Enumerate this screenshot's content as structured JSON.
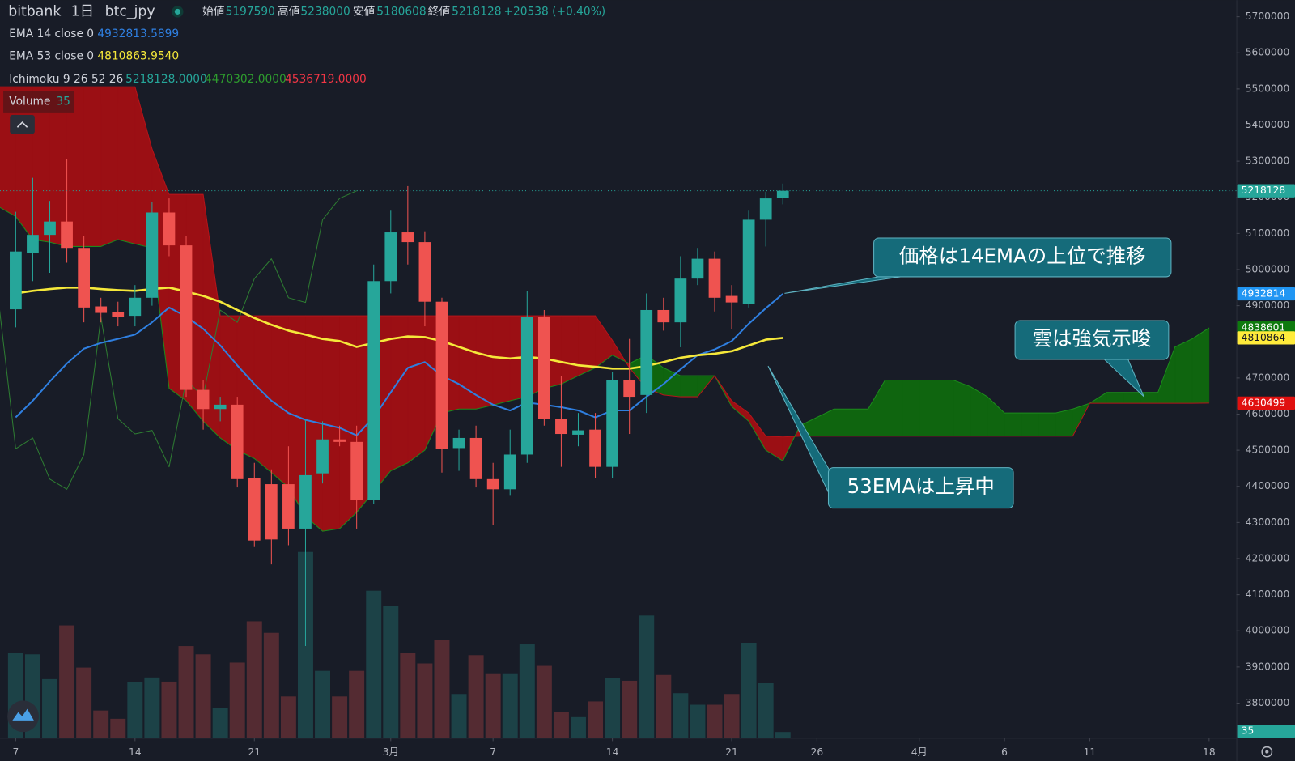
{
  "chart_data": {
    "type": "candlestick",
    "exchange": "bitbank",
    "interval": "1日",
    "symbol": "btc_jpy",
    "header": {
      "open_label": "始値",
      "high_label": "高値",
      "low_label": "安値",
      "close_label": "終値",
      "change": "+20538 (+0.40%)"
    },
    "x": [
      0,
      1,
      2,
      3,
      4,
      5,
      6,
      7,
      8,
      9,
      10,
      11,
      12,
      13,
      14,
      15,
      16,
      17,
      18,
      19,
      20,
      21,
      22,
      23,
      24,
      25,
      26,
      27,
      28,
      29,
      30,
      31,
      32,
      33,
      34,
      35,
      36,
      37,
      38,
      39,
      40,
      41,
      42,
      43,
      44,
      45
    ],
    "open": [
      4890000,
      5046000,
      5096000,
      5133000,
      5060000,
      4898000,
      4882000,
      4872000,
      4922000,
      5158000,
      5067000,
      4667000,
      4614000,
      4626000,
      4424000,
      4406000,
      4406000,
      4283000,
      4436000,
      4530000,
      4523000,
      4363000,
      4968000,
      5103000,
      5076000,
      4911000,
      4506000,
      4534000,
      4420000,
      4392000,
      4488000,
      4868000,
      4587000,
      4543000,
      4557000,
      4454000,
      4694000,
      4653000,
      4888000,
      4854000,
      4975000,
      5030000,
      4927000,
      4904000,
      5138000,
      5197590
    ],
    "high": [
      5160000,
      5254000,
      5190000,
      5307000,
      5094000,
      4922000,
      4911000,
      4957000,
      5186000,
      5197000,
      5094000,
      4694000,
      4648000,
      4648000,
      4465000,
      4447000,
      4511000,
      4584000,
      4580000,
      4568000,
      4568000,
      5014000,
      5163000,
      5231000,
      5106000,
      4922000,
      4557000,
      4568000,
      4465000,
      4557000,
      4941000,
      4888000,
      4706000,
      4603000,
      4603000,
      4717000,
      4808000,
      4934000,
      4922000,
      5037000,
      5060000,
      5050000,
      4957000,
      5163000,
      5215000,
      5238000
    ],
    "low": [
      4840000,
      4968000,
      4991000,
      5019000,
      4854000,
      4854000,
      4843000,
      4843000,
      4900000,
      5037000,
      4648000,
      4557000,
      4580000,
      4397000,
      4232000,
      4184000,
      4237000,
      3958000,
      4408000,
      4511000,
      4283000,
      4351000,
      4934000,
      5014000,
      4843000,
      4438000,
      4443000,
      4397000,
      4294000,
      4374000,
      4465000,
      4568000,
      4454000,
      4511000,
      4424000,
      4424000,
      4545000,
      4603000,
      4831000,
      4785000,
      4957000,
      4884000,
      4836000,
      4895000,
      5064000,
      5180608
    ],
    "close": [
      5050000,
      5096000,
      5133000,
      5060000,
      4895000,
      4880000,
      4868000,
      4922000,
      5158000,
      5067000,
      4667000,
      4614000,
      4626000,
      4420000,
      4250000,
      4253000,
      4283000,
      4431000,
      4530000,
      4523000,
      4363000,
      4968000,
      5103000,
      5076000,
      4911000,
      4504000,
      4534000,
      4420000,
      4392000,
      4488000,
      4868000,
      4587000,
      4545000,
      4555000,
      4454000,
      4694000,
      4648000,
      4888000,
      4854000,
      4975000,
      5030000,
      4922000,
      4909000,
      5138000,
      5197000,
      5218128
    ],
    "up_color": "#26a69a",
    "down_color": "#ef5350",
    "close_label": "5218128",
    "volume": {
      "name": "Volume",
      "values": [
        515,
        505,
        355,
        680,
        425,
        165,
        115,
        335,
        365,
        340,
        555,
        505,
        180,
        455,
        705,
        635,
        250,
        1125,
        405,
        250,
        405,
        890,
        800,
        515,
        450,
        590,
        265,
        500,
        390,
        390,
        565,
        435,
        155,
        125,
        220,
        360,
        345,
        740,
        380,
        270,
        200,
        200,
        265,
        575,
        330,
        35
      ],
      "ylim": [
        0,
        4465
      ],
      "last_label": "35"
    },
    "series": [
      {
        "name": "EMA 14 close 0",
        "color": "#2f7fe0",
        "legend_value": "4932813.5899",
        "last_label": "4932814",
        "label_color": "#2196f3",
        "values": [
          4591000,
          4637000,
          4690000,
          4740000,
          4781000,
          4797000,
          4808000,
          4820000,
          4854000,
          4895000,
          4870000,
          4836000,
          4790000,
          4735000,
          4683000,
          4637000,
          4603000,
          4584000,
          4573000,
          4562000,
          4541000,
          4591000,
          4660000,
          4728000,
          4744000,
          4706000,
          4683000,
          4653000,
          4626000,
          4610000,
          4632000,
          4626000,
          4619000,
          4610000,
          4591000,
          4610000,
          4610000,
          4648000,
          4683000,
          4724000,
          4763000,
          4779000,
          4802000,
          4850000,
          4893000,
          4932813.5899
        ]
      },
      {
        "name": "EMA 53 close 0",
        "color": "#f5e83a",
        "legend_value": "4810863.9540",
        "last_label": "4810864",
        "label_color": "#ffeb3b",
        "values": [
          4934000,
          4941000,
          4946000,
          4950000,
          4950000,
          4946000,
          4943000,
          4941000,
          4946000,
          4950000,
          4939000,
          4927000,
          4911000,
          4888000,
          4866000,
          4847000,
          4831000,
          4820000,
          4808000,
          4802000,
          4786000,
          4797000,
          4808000,
          4815000,
          4813000,
          4802000,
          4786000,
          4770000,
          4758000,
          4754000,
          4758000,
          4754000,
          4744000,
          4735000,
          4731000,
          4726000,
          4726000,
          4733000,
          4744000,
          4756000,
          4763000,
          4767000,
          4774000,
          4790000,
          4806000,
          4810863.954
        ]
      }
    ],
    "ichimoku": {
      "name": "Ichimoku 9 26 52 26",
      "legend_values": [
        "5218128.0000",
        "4470302.0000",
        "4536719.0000"
      ],
      "legend_colors": [
        "#26a69a",
        "#2e9d2e",
        "#f23645"
      ],
      "bull_color": "#0f650f",
      "bear_color": "#9b0f14",
      "lagging": {
        "color": "#2e7d32",
        "shift": -25
      },
      "x": [
        -1,
        0,
        1,
        2,
        3,
        4,
        5,
        6,
        7,
        8,
        9,
        10,
        11,
        12,
        13,
        14,
        15,
        16,
        17,
        18,
        19,
        20,
        21,
        22,
        23,
        24,
        25,
        26,
        27,
        28,
        29,
        30,
        31,
        32,
        33,
        34,
        35,
        36,
        37,
        38,
        39,
        40,
        41,
        42,
        43,
        44,
        45,
        46,
        47,
        48,
        49,
        50,
        51,
        52,
        53,
        54,
        55,
        56,
        57,
        58,
        59,
        60,
        61,
        62,
        63,
        64,
        65,
        66,
        67,
        68,
        69,
        70
      ],
      "span_a": {
        "color": "#1c8a1c",
        "label_color": "#0e7a0e",
        "last_label": "4838601",
        "values": [
          5174000,
          5147000,
          5083000,
          5076000,
          5064000,
          5064000,
          5064000,
          5083000,
          5071000,
          5060000,
          4671000,
          4637000,
          4580000,
          4534000,
          4500000,
          4477000,
          4438000,
          4397000,
          4317000,
          4276000,
          4283000,
          4328000,
          4385000,
          4443000,
          4465000,
          4500000,
          4603000,
          4614000,
          4614000,
          4625000,
          4637000,
          4648000,
          4671000,
          4683000,
          4706000,
          4728000,
          4763000,
          4740000,
          4763000,
          4728000,
          4706000,
          4706000,
          4706000,
          4621000,
          4580000,
          4500000,
          4470302,
          4568000,
          4591000,
          4614000,
          4614000,
          4614000,
          4694000,
          4694000,
          4694000,
          4694000,
          4694000,
          4676000,
          4648000,
          4603000,
          4603000,
          4603000,
          4603000,
          4614000,
          4630000,
          4660000,
          4660000,
          4660000,
          4660000,
          4786000,
          4808000,
          4838601
        ]
      },
      "span_b": {
        "color": "#b5141a",
        "label_color": "#e0100f",
        "last_label": "4630499",
        "values": [
          5506000,
          5506000,
          5506000,
          5506000,
          5506000,
          5506000,
          5506000,
          5506000,
          5506000,
          5334000,
          5208000,
          5208000,
          5208000,
          4872000,
          4872000,
          4872000,
          4872000,
          4872000,
          4872000,
          4872000,
          4872000,
          4872000,
          4872000,
          4872000,
          4872000,
          4872000,
          4872000,
          4872000,
          4872000,
          4872000,
          4872000,
          4872000,
          4872000,
          4872000,
          4872000,
          4872000,
          4804000,
          4728000,
          4671000,
          4653000,
          4648000,
          4648000,
          4706000,
          4637000,
          4603000,
          4539000,
          4536719,
          4539000,
          4539000,
          4539000,
          4539000,
          4539000,
          4539000,
          4539000,
          4539000,
          4539000,
          4539000,
          4539000,
          4539000,
          4539000,
          4539000,
          4539000,
          4539000,
          4539000,
          4630000,
          4630000,
          4630000,
          4630000,
          4630000,
          4630000,
          4630000,
          4630499
        ]
      }
    },
    "xlim": [
      -0.92,
      71.6
    ],
    "ylim": [
      3704000,
      5746000
    ],
    "yticks": [
      3800000,
      3900000,
      4000000,
      4100000,
      4200000,
      4300000,
      4400000,
      4500000,
      4600000,
      4700000,
      4800000,
      4900000,
      5000000,
      5100000,
      5200000,
      5300000,
      5400000,
      5500000,
      5600000,
      5700000
    ],
    "xticks": [
      {
        "value": 0,
        "label": "7"
      },
      {
        "value": 7,
        "label": "14"
      },
      {
        "value": 14,
        "label": "21"
      },
      {
        "value": 22,
        "label": "3月"
      },
      {
        "value": 28,
        "label": "7"
      },
      {
        "value": 35,
        "label": "14"
      },
      {
        "value": 42,
        "label": "21"
      },
      {
        "value": 47,
        "label": "26"
      },
      {
        "value": 53,
        "label": "4月"
      },
      {
        "value": 58,
        "label": "6"
      },
      {
        "value": 63,
        "label": "11"
      },
      {
        "value": 70,
        "label": "18"
      }
    ],
    "grid": false,
    "annotations": [
      "価格は14EMAの上位で推移",
      "雲は強気示唆",
      "53EMAは上昇中"
    ]
  }
}
